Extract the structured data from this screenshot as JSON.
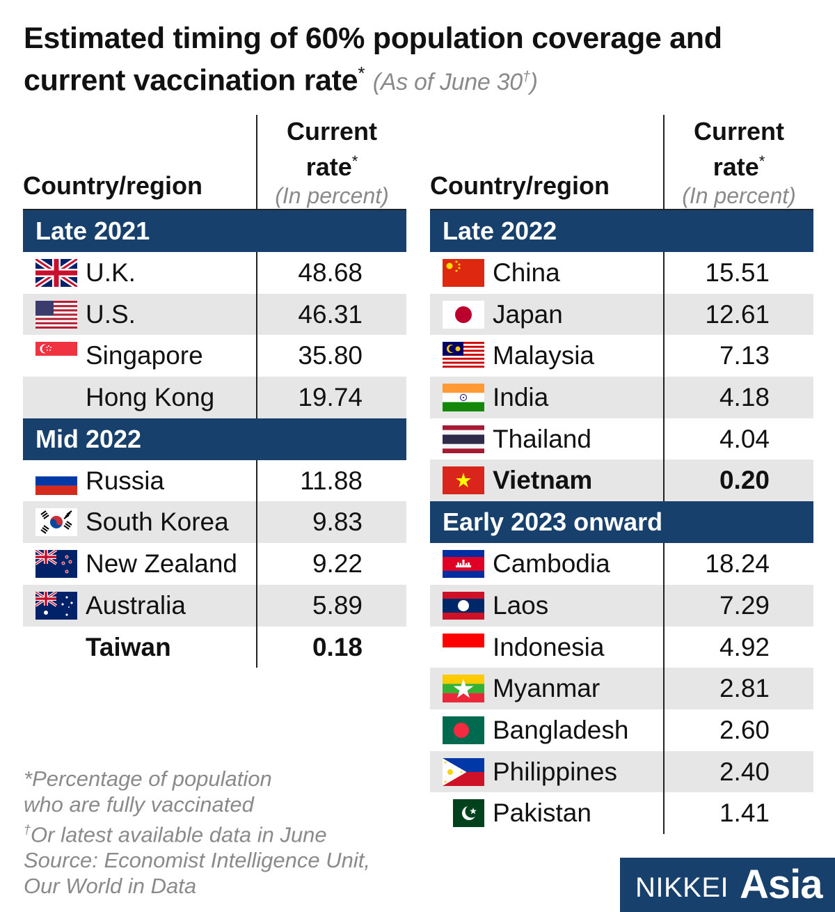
{
  "title": "Estimated timing of 60% population coverage and current vaccination rate",
  "title_marker": "*",
  "subtitle": "(As of June 30",
  "subtitle_dagger": "†",
  "subtitle_close": ")",
  "columns": {
    "country": "Country/region",
    "rate_line1": "Current",
    "rate_line2": "rate",
    "rate_marker": "*",
    "rate_unit": "(In percent)"
  },
  "chart_data": {
    "type": "table",
    "title": "Estimated timing of 60% population coverage and current vaccination rate",
    "unit": "percent of population fully vaccinated",
    "groups": [
      {
        "label": "Late 2021",
        "rows": [
          {
            "country": "U.K.",
            "flag": "uk-flag",
            "value": "48.68"
          },
          {
            "country": "U.S.",
            "flag": "us-flag",
            "value": "46.31"
          },
          {
            "country": "Singapore",
            "flag": "singapore-flag",
            "value": "35.80"
          },
          {
            "country": "Hong Kong",
            "flag": "",
            "value": "19.74"
          }
        ]
      },
      {
        "label": "Mid 2022",
        "rows": [
          {
            "country": "Russia",
            "flag": "russia-flag",
            "value": "11.88"
          },
          {
            "country": "South Korea",
            "flag": "south-korea-flag",
            "value": "9.83"
          },
          {
            "country": "New Zealand",
            "flag": "new-zealand-flag",
            "value": "9.22"
          },
          {
            "country": "Australia",
            "flag": "australia-flag",
            "value": "5.89"
          },
          {
            "country": "Taiwan",
            "flag": "",
            "value": "0.18",
            "bold": true
          }
        ]
      },
      {
        "label": "Late 2022",
        "rows": [
          {
            "country": "China",
            "flag": "china-flag",
            "value": "15.51"
          },
          {
            "country": "Japan",
            "flag": "japan-flag",
            "value": "12.61"
          },
          {
            "country": "Malaysia",
            "flag": "malaysia-flag",
            "value": "7.13"
          },
          {
            "country": "India",
            "flag": "india-flag",
            "value": "4.18"
          },
          {
            "country": "Thailand",
            "flag": "thailand-flag",
            "value": "4.04"
          },
          {
            "country": "Vietnam",
            "flag": "vietnam-flag",
            "value": "0.20",
            "bold": true
          }
        ]
      },
      {
        "label": "Early 2023 onward",
        "rows": [
          {
            "country": "Cambodia",
            "flag": "cambodia-flag",
            "value": "18.24"
          },
          {
            "country": "Laos",
            "flag": "laos-flag",
            "value": "7.29"
          },
          {
            "country": "Indonesia",
            "flag": "indonesia-flag",
            "value": "4.92"
          },
          {
            "country": "Myanmar",
            "flag": "myanmar-flag",
            "value": "2.81"
          },
          {
            "country": "Bangladesh",
            "flag": "bangladesh-flag",
            "value": "2.60"
          },
          {
            "country": "Philippines",
            "flag": "philippines-flag",
            "value": "2.40"
          },
          {
            "country": "Pakistan",
            "flag": "pakistan-flag",
            "value": "1.41"
          }
        ]
      }
    ]
  },
  "notes": {
    "line1": "*Percentage of population",
    "line2": "who are fully vaccinated",
    "dagger": "†",
    "line3": "Or latest available data in June",
    "line4": "Source: Economist Intelligence Unit,",
    "line5": "Our World in Data"
  },
  "brand": {
    "part1": "NIKKEI",
    "part2": "Asia"
  },
  "colors": {
    "header_bg": "#17416c",
    "row_shade": "#e6e6e6",
    "note_gray": "#8a8a8a"
  }
}
